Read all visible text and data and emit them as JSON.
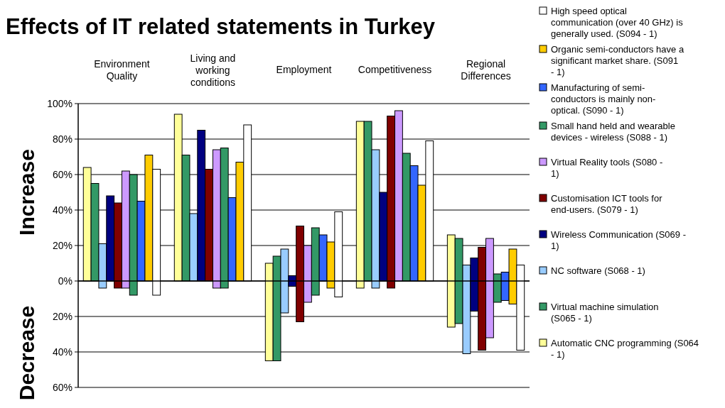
{
  "chart_data": {
    "type": "bar",
    "title": "Effects of IT related statements in Turkey",
    "ylabel": "Increase",
    "annotations": [
      "Decrease"
    ],
    "categories": [
      "Environment Quality",
      "Living and working conditions",
      "Employment",
      "Competitiveness",
      "Regional Differences"
    ],
    "ylim": [
      -60,
      100
    ],
    "yticks": [
      {
        "value": -60,
        "label": "60%"
      },
      {
        "value": -40,
        "label": "40%"
      },
      {
        "value": -20,
        "label": "20%"
      },
      {
        "value": 0,
        "label": "0%"
      },
      {
        "value": 20,
        "label": "20%"
      },
      {
        "value": 40,
        "label": "40%"
      },
      {
        "value": 60,
        "label": "60%"
      },
      {
        "value": 80,
        "label": "80%"
      },
      {
        "value": 100,
        "label": "100%"
      }
    ],
    "grid": "y",
    "legend": "right",
    "series": [
      {
        "name": "Automatic CNC programming (S064 - 1)",
        "color": "#ffff99",
        "base": [
          0,
          0,
          -45,
          -4,
          -26
        ],
        "values": [
          64,
          94,
          55,
          94,
          52
        ]
      },
      {
        "name": "Virtual machine simulation (S065 - 1)",
        "color": "#339966",
        "base": [
          0,
          0,
          -45,
          0,
          -24
        ],
        "values": [
          55,
          71,
          59,
          90,
          48
        ]
      },
      {
        "name": "NC software (S068 - 1)",
        "color": "#99ccff",
        "base": [
          -4,
          0,
          -18,
          -4,
          -41
        ],
        "values": [
          25,
          38,
          36,
          78,
          50
        ]
      },
      {
        "name": "Wireless Communication (S069 - 1)",
        "color": "#000080",
        "base": [
          0,
          0,
          -3,
          0,
          -17
        ],
        "values": [
          48,
          85,
          6,
          50,
          30
        ]
      },
      {
        "name": "Customisation ICT tools for end-users. (S079 - 1)",
        "color": "#800000",
        "base": [
          -4,
          0,
          -23,
          -4,
          -39
        ],
        "values": [
          48,
          63,
          54,
          97,
          58
        ]
      },
      {
        "name": "Virtual Reality tools (S080 - 1)",
        "color": "#cc99ff",
        "base": [
          -4,
          -4,
          -12,
          0,
          -32
        ],
        "values": [
          66,
          78,
          32,
          96,
          56
        ]
      },
      {
        "name": "Small hand held and wearable devices - wireless (S088 - 1)",
        "color": "#339966",
        "base": [
          -8,
          -4,
          -8,
          0,
          -12
        ],
        "values": [
          68,
          79,
          38,
          72,
          16
        ]
      },
      {
        "name": "Manufacturing of semi-conductors is mainly non-optical. (S090 - 1)",
        "color": "#3366ff",
        "base": [
          0,
          0,
          0,
          0,
          -11
        ],
        "values": [
          45,
          47,
          26,
          65,
          16
        ]
      },
      {
        "name": "Organic semi-conductors have a significant market share. (S091 - 1)",
        "color": "#ffcc00",
        "base": [
          0,
          0,
          -4,
          0,
          -13
        ],
        "values": [
          71,
          67,
          26,
          54,
          31
        ]
      },
      {
        "name": "High speed optical communication (over 40 GHz) is generally used.  (S094 - 1)",
        "color": "#ffffff",
        "base": [
          -8,
          0,
          -9,
          0,
          -39
        ],
        "values": [
          71,
          88,
          48,
          79,
          48
        ]
      }
    ]
  }
}
